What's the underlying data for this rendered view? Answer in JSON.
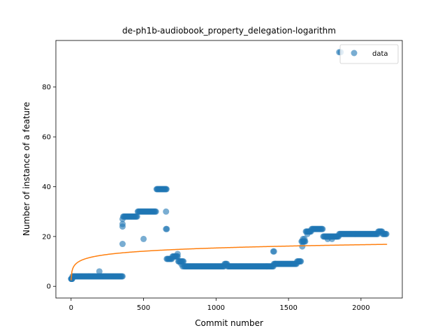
{
  "chart_data": {
    "type": "scatter",
    "title": "de-ph1b-audiobook_property_delegation-logarithm",
    "xlabel": "Commit number",
    "ylabel": "Number of instance of a feature",
    "xlim": [
      -105,
      2285
    ],
    "ylim": [
      -4.7,
      98.7
    ],
    "xticks": [
      0,
      500,
      1000,
      1500,
      2000
    ],
    "yticks": [
      0,
      20,
      40,
      60,
      80
    ],
    "grid": false,
    "legend": {
      "position": "top-right",
      "entries": [
        "data"
      ]
    },
    "series": [
      {
        "name": "data",
        "kind": "scatter",
        "color": "#1f77b4",
        "segments": [
          {
            "x_start": 0,
            "x_end": 10,
            "step": 2,
            "y": 3
          },
          {
            "x_start": 10,
            "x_end": 360,
            "step": 5,
            "y": 4
          },
          {
            "x_start": 360,
            "x_end": 460,
            "step": 5,
            "y": 28
          },
          {
            "x_start": 460,
            "x_end": 590,
            "step": 5,
            "y": 30
          },
          {
            "x_start": 590,
            "x_end": 660,
            "step": 4,
            "y": 39
          },
          {
            "x_start": 660,
            "x_end": 700,
            "step": 5,
            "y": 11
          },
          {
            "x_start": 700,
            "x_end": 740,
            "step": 5,
            "y": 12
          },
          {
            "x_start": 740,
            "x_end": 780,
            "step": 5,
            "y": 10
          },
          {
            "x_start": 780,
            "x_end": 1060,
            "step": 5,
            "y": 8
          },
          {
            "x_start": 1060,
            "x_end": 1080,
            "step": 5,
            "y": 9
          },
          {
            "x_start": 1080,
            "x_end": 1400,
            "step": 5,
            "y": 8
          },
          {
            "x_start": 1400,
            "x_end": 1560,
            "step": 5,
            "y": 9
          },
          {
            "x_start": 1560,
            "x_end": 1590,
            "step": 5,
            "y": 10
          },
          {
            "x_start": 1590,
            "x_end": 1620,
            "step": 5,
            "y": 18
          },
          {
            "x_start": 1620,
            "x_end": 1660,
            "step": 5,
            "y": 22
          },
          {
            "x_start": 1660,
            "x_end": 1740,
            "step": 5,
            "y": 23
          },
          {
            "x_start": 1740,
            "x_end": 1780,
            "step": 5,
            "y": 20
          },
          {
            "x_start": 1780,
            "x_end": 1850,
            "step": 5,
            "y": 20
          },
          {
            "x_start": 1850,
            "x_end": 2120,
            "step": 5,
            "y": 21
          },
          {
            "x_start": 2120,
            "x_end": 2150,
            "step": 5,
            "y": 22
          },
          {
            "x_start": 2150,
            "x_end": 2180,
            "step": 5,
            "y": 21
          }
        ],
        "extra_points": [
          [
            195,
            6
          ],
          [
            355,
            17
          ],
          [
            355,
            24
          ],
          [
            355,
            25
          ],
          [
            355,
            27
          ],
          [
            500,
            19
          ],
          [
            655,
            23
          ],
          [
            660,
            23
          ],
          [
            655,
            30
          ],
          [
            735,
            13
          ],
          [
            760,
            9
          ],
          [
            770,
            8
          ],
          [
            1395,
            14
          ],
          [
            1400,
            14
          ],
          [
            1410,
            9
          ],
          [
            1595,
            16
          ],
          [
            1600,
            19
          ],
          [
            1610,
            19
          ],
          [
            1630,
            21
          ],
          [
            1645,
            22
          ],
          [
            1770,
            19
          ],
          [
            1800,
            19
          ],
          [
            1830,
            20
          ],
          [
            1850,
            94
          ],
          [
            1860,
            94
          ]
        ]
      },
      {
        "name": "",
        "kind": "line",
        "color": "#ff7f0e",
        "model": "logarithmic",
        "a": 2.4,
        "b": 1.88,
        "x_range": [
          0,
          2180
        ]
      }
    ]
  }
}
